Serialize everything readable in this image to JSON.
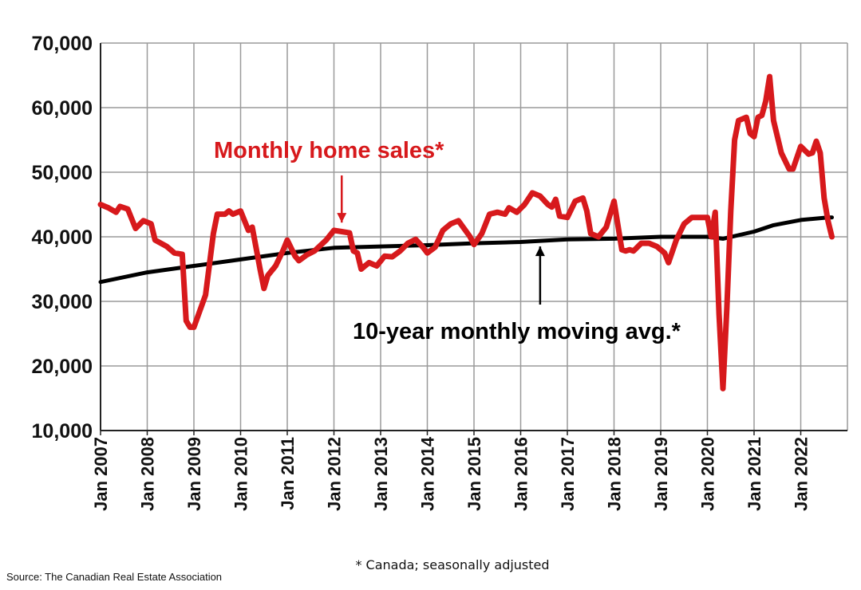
{
  "chart_data": {
    "type": "line",
    "title": "",
    "xlabel": "",
    "ylabel": "",
    "ylim": [
      10000,
      70000
    ],
    "yticks": [
      "10,000",
      "20,000",
      "30,000",
      "40,000",
      "50,000",
      "60,000",
      "70,000"
    ],
    "ytick_values": [
      10000,
      20000,
      30000,
      40000,
      50000,
      60000,
      70000
    ],
    "xlim": [
      "2007-01",
      "2023-01"
    ],
    "xticks": [
      "Jan 2007",
      "Jan 2008",
      "Jan 2009",
      "Jan 2010",
      "Jan 2011",
      "Jan 2012",
      "Jan 2013",
      "Jan 2014",
      "Jan 2015",
      "Jan 2016",
      "Jan 2017",
      "Jan 2018",
      "Jan 2019",
      "Jan 2020",
      "Jan 2021",
      "Jan 2022"
    ],
    "grid": true,
    "series": [
      {
        "name": "Monthly home sales*",
        "color": "#d7191c",
        "points": [
          [
            "2007-01",
            45000
          ],
          [
            "2007-03",
            44500
          ],
          [
            "2007-05",
            43800
          ],
          [
            "2007-06",
            44700
          ],
          [
            "2007-08",
            44300
          ],
          [
            "2007-10",
            41300
          ],
          [
            "2007-12",
            42500
          ],
          [
            "2008-02",
            42000
          ],
          [
            "2008-03",
            39500
          ],
          [
            "2008-06",
            38500
          ],
          [
            "2008-08",
            37500
          ],
          [
            "2008-10",
            37300
          ],
          [
            "2008-11",
            27000
          ],
          [
            "2008-12",
            26000
          ],
          [
            "2009-01",
            26000
          ],
          [
            "2009-04",
            31000
          ],
          [
            "2009-06",
            40500
          ],
          [
            "2009-07",
            43500
          ],
          [
            "2009-09",
            43500
          ],
          [
            "2009-10",
            44000
          ],
          [
            "2009-11",
            43500
          ],
          [
            "2010-01",
            44000
          ],
          [
            "2010-03",
            41000
          ],
          [
            "2010-04",
            41500
          ],
          [
            "2010-06",
            35000
          ],
          [
            "2010-07",
            32000
          ],
          [
            "2010-08",
            34000
          ],
          [
            "2010-10",
            35500
          ],
          [
            "2010-12",
            38000
          ],
          [
            "2011-01",
            39500
          ],
          [
            "2011-03",
            37000
          ],
          [
            "2011-04",
            36300
          ],
          [
            "2011-06",
            37200
          ],
          [
            "2011-08",
            37800
          ],
          [
            "2011-11",
            39500
          ],
          [
            "2012-01",
            41000
          ],
          [
            "2012-03",
            40800
          ],
          [
            "2012-05",
            40600
          ],
          [
            "2012-06",
            37800
          ],
          [
            "2012-07",
            37500
          ],
          [
            "2012-08",
            35000
          ],
          [
            "2012-10",
            36000
          ],
          [
            "2012-12",
            35500
          ],
          [
            "2013-02",
            37000
          ],
          [
            "2013-04",
            36900
          ],
          [
            "2013-06",
            37800
          ],
          [
            "2013-08",
            39000
          ],
          [
            "2013-10",
            39600
          ],
          [
            "2013-12",
            38300
          ],
          [
            "2014-01",
            37500
          ],
          [
            "2014-03",
            38400
          ],
          [
            "2014-05",
            41000
          ],
          [
            "2014-07",
            42000
          ],
          [
            "2014-09",
            42500
          ],
          [
            "2014-12",
            40000
          ],
          [
            "2015-01",
            38800
          ],
          [
            "2015-03",
            40500
          ],
          [
            "2015-05",
            43500
          ],
          [
            "2015-07",
            43800
          ],
          [
            "2015-09",
            43500
          ],
          [
            "2015-10",
            44500
          ],
          [
            "2015-12",
            43800
          ],
          [
            "2016-02",
            45000
          ],
          [
            "2016-04",
            46800
          ],
          [
            "2016-06",
            46300
          ],
          [
            "2016-08",
            45000
          ],
          [
            "2016-09",
            44600
          ],
          [
            "2016-10",
            45800
          ],
          [
            "2016-11",
            43200
          ],
          [
            "2017-01",
            43000
          ],
          [
            "2017-03",
            45500
          ],
          [
            "2017-05",
            46000
          ],
          [
            "2017-06",
            44000
          ],
          [
            "2017-07",
            40500
          ],
          [
            "2017-09",
            40000
          ],
          [
            "2017-11",
            41500
          ],
          [
            "2018-01",
            45500
          ],
          [
            "2018-03",
            38000
          ],
          [
            "2018-04",
            37800
          ],
          [
            "2018-05",
            38000
          ],
          [
            "2018-06",
            37800
          ],
          [
            "2018-08",
            39000
          ],
          [
            "2018-10",
            39000
          ],
          [
            "2018-12",
            38500
          ],
          [
            "2019-02",
            37500
          ],
          [
            "2019-03",
            36000
          ],
          [
            "2019-05",
            39500
          ],
          [
            "2019-07",
            42000
          ],
          [
            "2019-09",
            43000
          ],
          [
            "2019-11",
            43000
          ],
          [
            "2020-01",
            43000
          ],
          [
            "2020-02",
            40000
          ],
          [
            "2020-03",
            43800
          ],
          [
            "2020-04",
            28000
          ],
          [
            "2020-05",
            16500
          ],
          [
            "2020-06",
            29000
          ],
          [
            "2020-07",
            44000
          ],
          [
            "2020-08",
            55000
          ],
          [
            "2020-09",
            58000
          ],
          [
            "2020-11",
            58500
          ],
          [
            "2020-12",
            56000
          ],
          [
            "2021-01",
            55500
          ],
          [
            "2021-02",
            58500
          ],
          [
            "2021-03",
            58800
          ],
          [
            "2021-04",
            61000
          ],
          [
            "2021-05",
            64800
          ],
          [
            "2021-06",
            58000
          ],
          [
            "2021-08",
            53000
          ],
          [
            "2021-10",
            50500
          ],
          [
            "2021-11",
            50500
          ],
          [
            "2022-01",
            54000
          ],
          [
            "2022-03",
            52800
          ],
          [
            "2022-04",
            53000
          ],
          [
            "2022-05",
            54800
          ],
          [
            "2022-06",
            53000
          ],
          [
            "2022-07",
            46000
          ],
          [
            "2022-08",
            42500
          ],
          [
            "2022-09",
            40000
          ]
        ]
      },
      {
        "name": "10-year monthly moving avg.*",
        "color": "#000000",
        "points": [
          [
            "2007-01",
            33000
          ],
          [
            "2008-01",
            34500
          ],
          [
            "2009-01",
            35500
          ],
          [
            "2010-01",
            36500
          ],
          [
            "2011-01",
            37500
          ],
          [
            "2012-01",
            38300
          ],
          [
            "2013-01",
            38500
          ],
          [
            "2014-01",
            38700
          ],
          [
            "2015-01",
            39000
          ],
          [
            "2016-01",
            39200
          ],
          [
            "2017-01",
            39600
          ],
          [
            "2018-01",
            39700
          ],
          [
            "2019-01",
            40000
          ],
          [
            "2020-01",
            40000
          ],
          [
            "2020-05",
            39700
          ],
          [
            "2021-01",
            40800
          ],
          [
            "2021-06",
            41800
          ],
          [
            "2022-01",
            42600
          ],
          [
            "2022-08",
            43000
          ],
          [
            "2022-09",
            43000
          ]
        ]
      }
    ],
    "annotations": [
      {
        "text": "Monthly home sales*",
        "color": "#d7191c",
        "arrow_from": [
          "2012-03",
          49500
        ],
        "arrow_to": [
          "2012-03",
          42200
        ]
      },
      {
        "text": "10-year monthly moving avg.*",
        "color": "#000000",
        "arrow_from": [
          "2016-06",
          29500
        ],
        "arrow_to": [
          "2016-06",
          38500
        ]
      }
    ],
    "footnote": "* Canada; seasonally adjusted",
    "source": "Source: The Canadian Real Estate Association"
  }
}
